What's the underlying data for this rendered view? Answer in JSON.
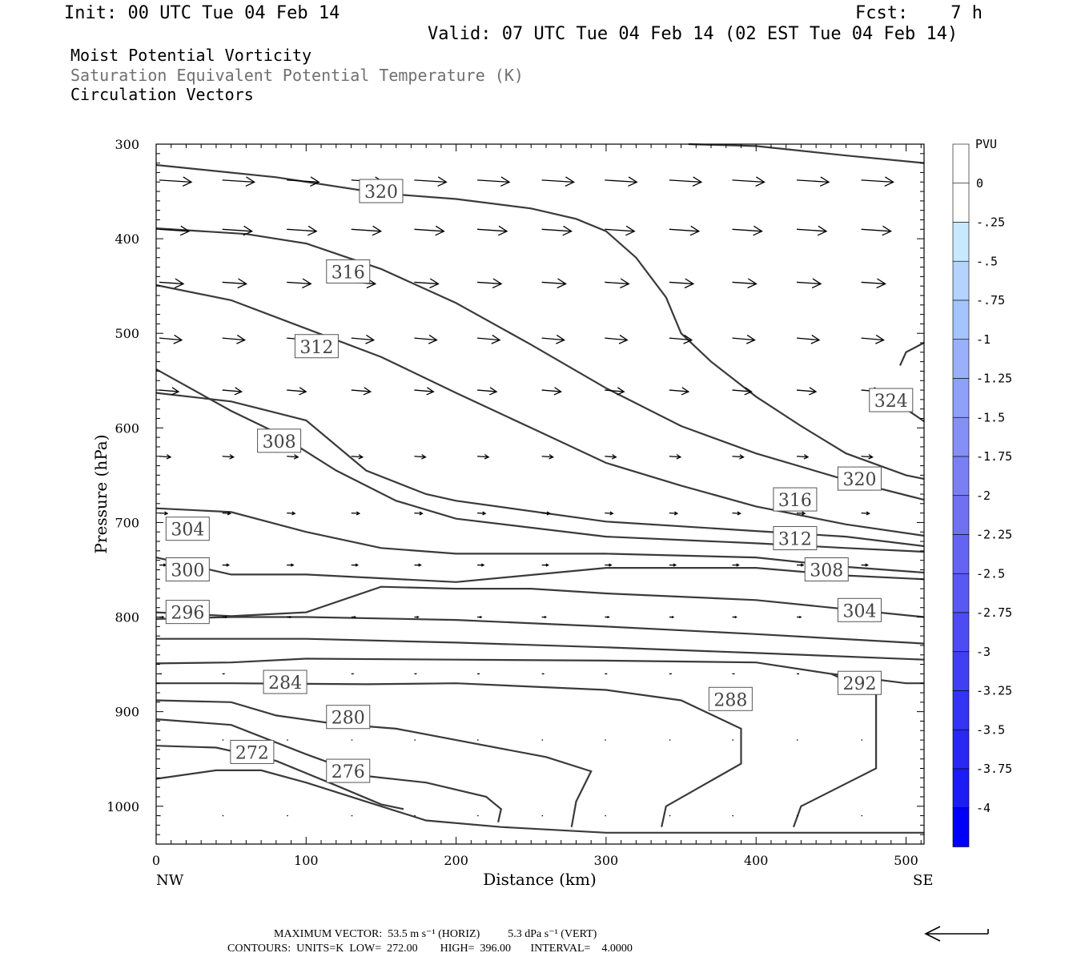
{
  "header": {
    "init": "Init: 00 UTC Tue 04 Feb 14",
    "fcst": "Fcst:    7 h",
    "valid": "Valid: 07 UTC Tue 04 Feb 14 (02 EST Tue 04 Feb 14)",
    "field1": "Moist Potential Vorticity",
    "field2": "Saturation Equivalent Potential Temperature (K)",
    "field3": "Circulation Vectors"
  },
  "footer": {
    "max_vector": "MAXIMUM VECTOR:  53.5 m s⁻¹ (HORIZ)          5.3 dPa s⁻¹ (VERT)",
    "contours": "CONTOURS:  UNITS=K  LOW=  272.00        HIGH=  396.00       INTERVAL=    4.0000"
  },
  "colors": {
    "contour": "#3a3a3a",
    "arrow": "#000000",
    "colorbar": [
      "#ffffff",
      "#ffffff",
      "#c8e8ff",
      "#b4d4ff",
      "#a4c4fc",
      "#9ab0fa",
      "#8ea0f8",
      "#8490f6",
      "#7a80f4",
      "#7070f2",
      "#6464f2",
      "#5858f2",
      "#4c4cf2",
      "#4040f2",
      "#3434f2",
      "#2828f2",
      "#1c1cf4",
      "#0000f8"
    ]
  },
  "chart_data": {
    "type": "cross-section",
    "xlabel": "Distance (km)",
    "ylabel": "Pressure (hPa)",
    "xlim": [
      0,
      512
    ],
    "ylim": [
      1040,
      300
    ],
    "x_ticks": [
      "0",
      "100",
      "200",
      "300",
      "400",
      "500"
    ],
    "y_ticks": [
      "300",
      "400",
      "500",
      "600",
      "700",
      "800",
      "900",
      "1000"
    ],
    "left_endpoint": "NW",
    "right_endpoint": "SE",
    "colorbar": {
      "unit": "PVU",
      "labels": [
        "0",
        "-.25",
        "-.5",
        "-.75",
        "-1",
        "-1.25",
        "-1.5",
        "-1.75",
        "-2",
        "-2.25",
        "-2.5",
        "-2.75",
        "-3",
        "-3.25",
        "-3.5",
        "-3.75",
        "-4"
      ]
    },
    "contours": [
      {
        "value": "272",
        "points": [
          [
            0,
            971
          ],
          [
            40,
            962
          ],
          [
            70,
            962
          ],
          [
            100,
            975
          ],
          [
            140,
            995
          ],
          [
            180,
            1015
          ],
          [
            230,
            1022
          ],
          [
            300,
            1028
          ],
          [
            512,
            1028
          ]
        ]
      },
      {
        "value": "276",
        "points": [
          [
            0,
            936
          ],
          [
            40,
            938
          ],
          [
            80,
            952
          ],
          [
            120,
            978
          ],
          [
            150,
            998
          ],
          [
            165,
            1003
          ]
        ]
      },
      {
        "value": "280",
        "points": [
          [
            0,
            908
          ],
          [
            50,
            914
          ],
          [
            100,
            945
          ],
          [
            140,
            968
          ],
          [
            180,
            975
          ],
          [
            220,
            990
          ],
          [
            230,
            1003
          ],
          [
            228,
            1017
          ]
        ]
      },
      {
        "value": "284",
        "points": [
          [
            0,
            888
          ],
          [
            50,
            890
          ],
          [
            80,
            904
          ],
          [
            120,
            913
          ],
          [
            160,
            918
          ],
          [
            200,
            930
          ],
          [
            260,
            948
          ],
          [
            290,
            963
          ],
          [
            280,
            995
          ],
          [
            277,
            1022
          ]
        ]
      },
      {
        "value": "288",
        "points": [
          [
            0,
            870
          ],
          [
            50,
            870
          ],
          [
            140,
            871
          ],
          [
            200,
            870
          ],
          [
            300,
            877
          ],
          [
            350,
            888
          ],
          [
            390,
            918
          ],
          [
            390,
            955
          ],
          [
            340,
            1000
          ],
          [
            337,
            1022
          ]
        ]
      },
      {
        "value": "292",
        "points": [
          [
            0,
            849
          ],
          [
            50,
            848
          ],
          [
            100,
            844
          ],
          [
            200,
            845
          ],
          [
            300,
            846
          ],
          [
            400,
            848
          ],
          [
            450,
            860
          ],
          [
            480,
            882
          ],
          [
            480,
            960
          ],
          [
            430,
            1000
          ],
          [
            425,
            1022
          ]
        ]
      },
      {
        "value": "292b",
        "points": [
          [
            450,
            860
          ],
          [
            500,
            870
          ],
          [
            512,
            870
          ]
        ]
      },
      {
        "value": "s1",
        "points": [
          [
            0,
            823
          ],
          [
            100,
            823
          ],
          [
            200,
            827
          ],
          [
            300,
            832
          ],
          [
            400,
            838
          ],
          [
            512,
            845
          ]
        ]
      },
      {
        "value": "s2",
        "points": [
          [
            0,
            802
          ],
          [
            50,
            800
          ],
          [
            100,
            800
          ],
          [
            200,
            803
          ],
          [
            300,
            810
          ],
          [
            400,
            818
          ],
          [
            512,
            828
          ]
        ]
      },
      {
        "value": "296",
        "points": [
          [
            0,
            795
          ],
          [
            50,
            799
          ],
          [
            100,
            795
          ],
          [
            150,
            768
          ],
          [
            200,
            770
          ],
          [
            250,
            770
          ],
          [
            300,
            775
          ],
          [
            400,
            782
          ],
          [
            512,
            800
          ]
        ]
      },
      {
        "value": "300",
        "points": [
          [
            0,
            737
          ],
          [
            50,
            755
          ],
          [
            100,
            755
          ],
          [
            200,
            763
          ],
          [
            300,
            748
          ],
          [
            400,
            748
          ],
          [
            460,
            756
          ],
          [
            512,
            760
          ]
        ]
      },
      {
        "value": "304",
        "points": [
          [
            0,
            685
          ],
          [
            50,
            689
          ],
          [
            100,
            710
          ],
          [
            150,
            727
          ],
          [
            200,
            733
          ],
          [
            300,
            733
          ],
          [
            400,
            737
          ],
          [
            460,
            747
          ],
          [
            512,
            753
          ]
        ]
      },
      {
        "value": "308",
        "points": [
          [
            0,
            563
          ],
          [
            50,
            572
          ],
          [
            100,
            592
          ],
          [
            140,
            645
          ],
          [
            180,
            670
          ],
          [
            200,
            677
          ],
          [
            300,
            699
          ],
          [
            400,
            709
          ],
          [
            460,
            715
          ],
          [
            512,
            725
          ]
        ]
      },
      {
        "value": "312",
        "points": [
          [
            0,
            538
          ],
          [
            50,
            582
          ],
          [
            80,
            605
          ],
          [
            120,
            645
          ],
          [
            160,
            677
          ],
          [
            200,
            696
          ],
          [
            300,
            715
          ],
          [
            400,
            722
          ],
          [
            460,
            727
          ],
          [
            512,
            731
          ]
        ]
      },
      {
        "value": "316",
        "points": [
          [
            0,
            449
          ],
          [
            50,
            465
          ],
          [
            100,
            495
          ],
          [
            150,
            525
          ],
          [
            200,
            563
          ],
          [
            250,
            600
          ],
          [
            300,
            637
          ],
          [
            350,
            661
          ],
          [
            400,
            683
          ],
          [
            460,
            702
          ],
          [
            512,
            714
          ]
        ]
      },
      {
        "value": "320",
        "points": [
          [
            0,
            389
          ],
          [
            60,
            395
          ],
          [
            100,
            405
          ],
          [
            150,
            432
          ],
          [
            200,
            468
          ],
          [
            250,
            512
          ],
          [
            300,
            558
          ],
          [
            350,
            598
          ],
          [
            400,
            627
          ],
          [
            460,
            655
          ],
          [
            512,
            676
          ]
        ]
      },
      {
        "value": "320b",
        "points": [
          [
            0,
            322
          ],
          [
            80,
            335
          ],
          [
            150,
            352
          ],
          [
            200,
            358
          ],
          [
            250,
            368
          ],
          [
            280,
            379
          ],
          [
            300,
            392
          ],
          [
            320,
            420
          ],
          [
            340,
            462
          ],
          [
            350,
            500
          ],
          [
            370,
            530
          ],
          [
            400,
            567
          ],
          [
            430,
            598
          ],
          [
            460,
            627
          ],
          [
            500,
            650
          ],
          [
            512,
            654
          ]
        ]
      },
      {
        "value": "324",
        "points": [
          [
            496,
            534
          ],
          [
            500,
            520
          ],
          [
            512,
            510
          ]
        ]
      },
      {
        "value": "324b",
        "points": [
          [
            500,
            580
          ],
          [
            512,
            593
          ]
        ]
      },
      {
        "value": "top",
        "points": [
          [
            355,
            300
          ],
          [
            400,
            302
          ],
          [
            460,
            312
          ],
          [
            512,
            320
          ]
        ]
      }
    ],
    "contour_labels": [
      {
        "text": "320",
        "x": 150,
        "y": 350
      },
      {
        "text": "316",
        "x": 128,
        "y": 435
      },
      {
        "text": "312",
        "x": 107,
        "y": 514
      },
      {
        "text": "308",
        "x": 82,
        "y": 614
      },
      {
        "text": "304",
        "x": 21,
        "y": 707
      },
      {
        "text": "300",
        "x": 21,
        "y": 750
      },
      {
        "text": "296",
        "x": 21,
        "y": 795
      },
      {
        "text": "284",
        "x": 86,
        "y": 869
      },
      {
        "text": "280",
        "x": 128,
        "y": 906
      },
      {
        "text": "272",
        "x": 64,
        "y": 943
      },
      {
        "text": "276",
        "x": 128,
        "y": 963
      },
      {
        "text": "288",
        "x": 383,
        "y": 887
      },
      {
        "text": "292",
        "x": 469,
        "y": 870
      },
      {
        "text": "304",
        "x": 469,
        "y": 793
      },
      {
        "text": "308",
        "x": 447,
        "y": 750
      },
      {
        "text": "312",
        "x": 426,
        "y": 717
      },
      {
        "text": "316",
        "x": 426,
        "y": 676
      },
      {
        "text": "320",
        "x": 469,
        "y": 654
      },
      {
        "text": "324",
        "x": 490,
        "y": 571
      }
    ],
    "vector_rows": [
      {
        "p": 338,
        "dx": 40,
        "dy": 2.5,
        "xs": [
          0,
          42,
          85,
          128,
          170,
          212,
          255,
          297,
          340,
          382,
          425,
          468
        ]
      },
      {
        "p": 390,
        "dx": 37,
        "dy": 2.5,
        "xs": [
          0,
          42,
          85,
          128,
          170,
          212,
          255,
          297,
          340,
          382,
          425,
          468
        ]
      },
      {
        "p": 446,
        "dx": 30,
        "dy": 2,
        "xs": [
          0,
          42,
          85,
          128,
          170,
          212,
          255,
          297,
          340,
          382,
          425,
          468
        ]
      },
      {
        "p": 505,
        "dx": 28,
        "dy": 2.5,
        "xs": [
          0,
          42,
          85,
          128,
          170,
          212,
          255,
          297,
          340,
          382,
          425,
          468
        ]
      },
      {
        "p": 560,
        "dx": 24,
        "dy": 2,
        "xs": [
          0,
          42,
          85,
          128,
          170,
          212,
          255,
          297,
          340,
          382,
          425,
          468
        ]
      },
      {
        "p": 630,
        "dx": 14,
        "dy": 1,
        "xs": [
          0,
          42,
          85,
          128,
          170,
          212,
          255,
          297,
          340,
          382,
          425,
          468
        ]
      },
      {
        "p": 690,
        "dx": 10,
        "dy": 0.5,
        "xs": [
          0,
          42,
          85,
          128,
          170,
          212,
          255,
          297,
          340,
          382,
          425,
          468
        ]
      },
      {
        "p": 745,
        "dx": 8,
        "dy": 0,
        "xs": [
          0,
          42,
          85,
          128,
          170,
          212,
          255,
          297,
          340,
          382,
          425,
          468
        ]
      },
      {
        "p": 800,
        "dx": 5,
        "dy": 0,
        "xs": [
          0,
          42,
          85,
          128,
          170,
          212,
          255,
          297,
          340,
          382,
          425,
          468
        ]
      },
      {
        "p": 860,
        "dx": 3,
        "dy": 0,
        "xs": [
          0,
          42,
          85,
          128,
          170,
          212,
          255,
          297,
          340,
          382,
          425,
          468
        ]
      },
      {
        "p": 930,
        "dx": 1.5,
        "dy": 0,
        "xs": [
          0,
          42,
          85,
          128,
          170,
          212,
          255,
          297,
          340,
          382,
          425,
          468
        ]
      },
      {
        "p": 1010,
        "dx": 1.5,
        "dy": 0,
        "xs": [
          0,
          42,
          85,
          128,
          170,
          212,
          255,
          297,
          340,
          382,
          425,
          468
        ]
      }
    ]
  }
}
